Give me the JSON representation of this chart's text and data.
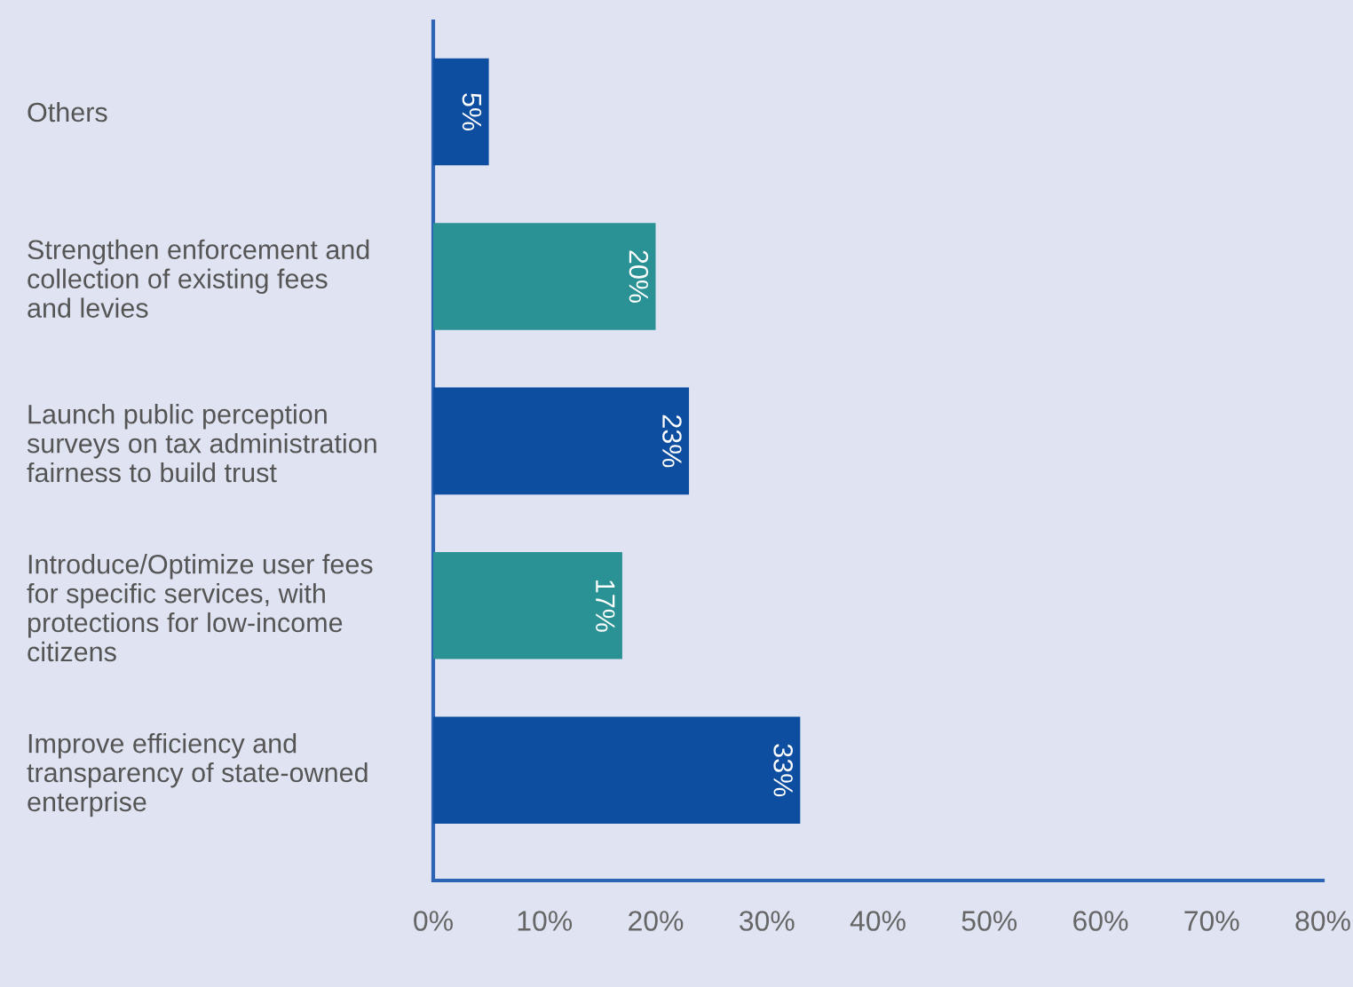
{
  "chart_data": {
    "type": "bar",
    "orientation": "horizontal",
    "categories": [
      "Others",
      "Strengthen enforcement and\ncollection of existing fees\nand levies",
      "Launch public perception\nsurveys on tax administration\nfairness to build trust",
      "Introduce/Optimize user fees\nfor specific services, with\nprotections for low-income\ncitizens",
      "Improve efficiency and\ntransparency of state-owned\nenterprise"
    ],
    "values": [
      5,
      20,
      23,
      17,
      33
    ],
    "value_labels": [
      "5%",
      "20%",
      "23%",
      "17%",
      "33%"
    ],
    "colors": [
      "#0d4ea0",
      "#2a9195",
      "#0d4ea0",
      "#2a9195",
      "#0d4ea0"
    ],
    "xlim": [
      0,
      80
    ],
    "xticks": [
      {
        "value": 0,
        "label": "0%"
      },
      {
        "value": 10,
        "label": "10%"
      },
      {
        "value": 20,
        "label": "20%"
      },
      {
        "value": 30,
        "label": "30%"
      },
      {
        "value": 40,
        "label": "40%"
      },
      {
        "value": 50,
        "label": "50%"
      },
      {
        "value": 60,
        "label": "60%"
      },
      {
        "value": 70,
        "label": "70%"
      },
      {
        "value": 80,
        "label": "80%"
      }
    ],
    "grid": false,
    "legend": false
  }
}
